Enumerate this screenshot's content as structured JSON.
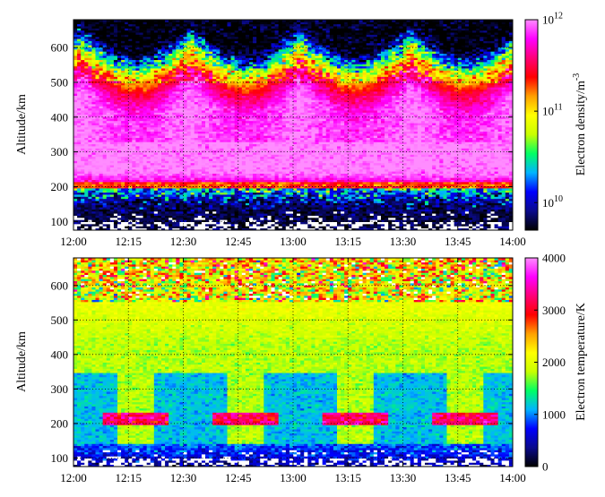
{
  "chart_data": [
    {
      "type": "heatmap",
      "title": "",
      "xlabel": "",
      "ylabel": "Altitude/km",
      "x_ticks": [
        "12:00",
        "12:15",
        "12:30",
        "12:45",
        "13:00",
        "13:15",
        "13:30",
        "13:45",
        "14:00"
      ],
      "xlim_minutes": [
        0,
        120
      ],
      "y_ticks": [
        100,
        200,
        300,
        400,
        500,
        600
      ],
      "ylim": [
        75,
        680
      ],
      "grid": true,
      "colorbar": {
        "label": "Electron density/m",
        "label_superscript": "-3",
        "scale": "log",
        "range": [
          5000000000.0,
          1000000000000.0
        ],
        "ticks": [
          {
            "value": 1000000000000.0,
            "base": "10",
            "exp": "12"
          },
          {
            "value": 100000000000.0,
            "base": "10",
            "exp": "11"
          },
          {
            "value": 10000000000.0,
            "base": "10",
            "exp": "10"
          }
        ],
        "colormap": [
          "#000000",
          "#0a0a8c",
          "#0000ff",
          "#00b4ff",
          "#00ff64",
          "#c8ff00",
          "#ffff00",
          "#ffa000",
          "#ff0000",
          "#ff0078",
          "#ff00ff",
          "#ff8cff"
        ]
      },
      "structure": {
        "peak_altitude_km": [
          250,
          450
        ],
        "bottomside_edge_km": 200,
        "cycle_period_min": 30,
        "cycle_phase_min": 2,
        "night_noise_band_km": [
          80,
          130
        ],
        "peak_log10_density": 12,
        "background_log10_density": 9.8
      }
    },
    {
      "type": "heatmap",
      "title": "",
      "xlabel": "",
      "ylabel": "Altitude/km",
      "x_ticks": [
        "12:00",
        "12:15",
        "12:30",
        "12:45",
        "13:00",
        "13:15",
        "13:30",
        "13:45",
        "14:00"
      ],
      "xlim_minutes": [
        0,
        120
      ],
      "y_ticks": [
        100,
        200,
        300,
        400,
        500,
        600
      ],
      "ylim": [
        75,
        680
      ],
      "grid": true,
      "colorbar": {
        "label": "Electron temperature/K",
        "scale": "linear",
        "range": [
          0,
          4000
        ],
        "ticks": [
          {
            "value": 4000,
            "label": "4000"
          },
          {
            "value": 3000,
            "label": "3000"
          },
          {
            "value": 2000,
            "label": "2000"
          },
          {
            "value": 1000,
            "label": "1000"
          },
          {
            "value": 0,
            "label": "0"
          }
        ],
        "colormap": [
          "#000000",
          "#0a0a8c",
          "#0000ff",
          "#00b4ff",
          "#00ff64",
          "#c8ff00",
          "#ffff00",
          "#ffa000",
          "#ff0000",
          "#ff0078",
          "#ff00ff",
          "#ff8cff"
        ]
      },
      "structure": {
        "background_temperature_K": 1800,
        "teal_patch_temperature_K": 1150,
        "teal_patch_altitude_km": [
          140,
          350
        ],
        "hot_band_altitude_km": [
          195,
          230
        ],
        "hot_band_temperature_K": 3200,
        "upper_noise_altitude_km": [
          550,
          680
        ],
        "cycle_period_min": 30,
        "cycle_phase_min": 2
      }
    }
  ]
}
